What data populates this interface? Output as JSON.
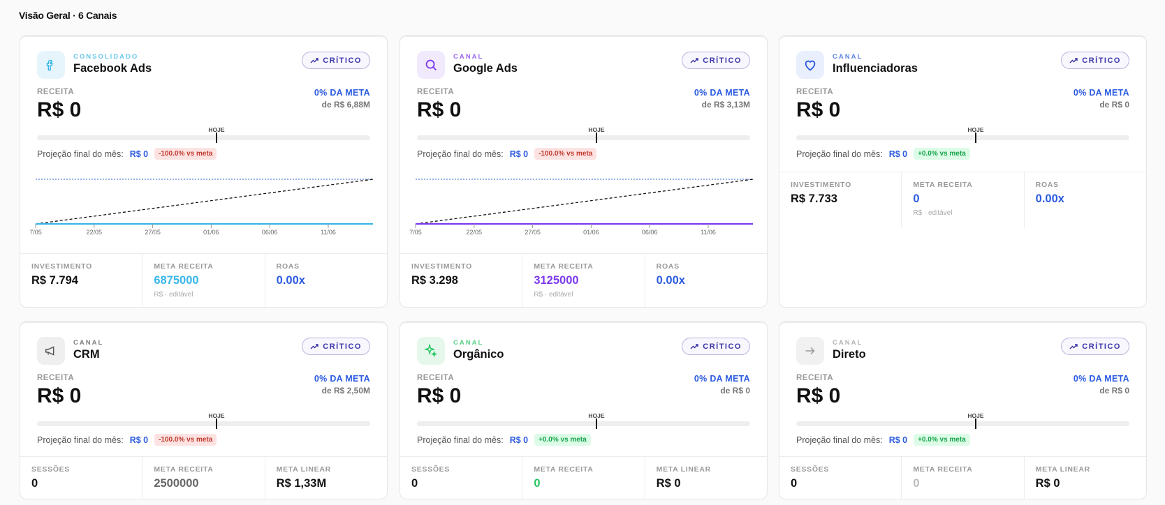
{
  "header": {
    "title": "Visão Geral · 6 Canais"
  },
  "cards": [
    {
      "tag": "CONSOLIDADO",
      "name": "Facebook Ads",
      "accent": "#38b6e8",
      "icon_bg": "#e6f5fc",
      "status": "CRÍTICO",
      "revenue_label": "RECEITA",
      "revenue": "R$ 0",
      "goal_pct": "0% DA META",
      "goal": "de R$ 6,88M",
      "today": "HOJE",
      "projection_label": "Projeção final do mês:",
      "projection": "R$ 0",
      "projection_delta": "-100.0% vs meta",
      "chart_ticks": [
        "7/05",
        "22/05",
        "27/05",
        "01/06",
        "06/06",
        "11/06"
      ],
      "stats": [
        {
          "label": "INVESTIMENTO",
          "value": "R$ 7.794"
        },
        {
          "label": "META RECEITA",
          "value": "6875000",
          "note": "R$ · editável",
          "color": "#38b6e8"
        },
        {
          "label": "ROAS",
          "value": "0.00x",
          "color": "#2b5be0"
        }
      ]
    },
    {
      "tag": "CANAL",
      "name": "Google Ads",
      "accent": "#7c3aed",
      "icon_bg": "#f1eafd",
      "status": "CRÍTICO",
      "revenue_label": "RECEITA",
      "revenue": "R$ 0",
      "goal_pct": "0% DA META",
      "goal": "de R$ 3,13M",
      "today": "HOJE",
      "projection_label": "Projeção final do mês:",
      "projection": "R$ 0",
      "projection_delta": "-100.0% vs meta",
      "chart_ticks": [
        "7/05",
        "22/05",
        "27/05",
        "01/06",
        "06/06",
        "11/06"
      ],
      "stats": [
        {
          "label": "INVESTIMENTO",
          "value": "R$ 3.298"
        },
        {
          "label": "META RECEITA",
          "value": "3125000",
          "note": "R$ · editável",
          "color": "#7c3aed"
        },
        {
          "label": "ROAS",
          "value": "0.00x",
          "color": "#2b5be0"
        }
      ]
    },
    {
      "tag": "CANAL",
      "name": "Influenciadoras",
      "accent": "#2b5be0",
      "icon_bg": "#e9effd",
      "status": "CRÍTICO",
      "revenue_label": "RECEITA",
      "revenue": "R$ 0",
      "goal_pct": "0% DA META",
      "goal": "de R$ 0",
      "today": "HOJE",
      "projection_label": "Projeção final do mês:",
      "projection": "R$ 0",
      "projection_delta": "+0.0% vs meta",
      "stats": [
        {
          "label": "INVESTIMENTO",
          "value": "R$ 7.733"
        },
        {
          "label": "META RECEITA",
          "value": "0",
          "note": "R$ · editável",
          "color": "#2b5be0"
        },
        {
          "label": "ROAS",
          "value": "0.00x",
          "color": "#2b5be0"
        }
      ]
    },
    {
      "tag": "CANAL",
      "name": "CRM",
      "accent": "#555555",
      "icon_bg": "#efefef",
      "status": "CRÍTICO",
      "revenue_label": "RECEITA",
      "revenue": "R$ 0",
      "goal_pct": "0% DA META",
      "goal": "de R$ 2,50M",
      "today": "HOJE",
      "projection_label": "Projeção final do mês:",
      "projection": "R$ 0",
      "projection_delta": "-100.0% vs meta",
      "stats": [
        {
          "label": "SESSÕES",
          "value": "0"
        },
        {
          "label": "META RECEITA",
          "value": "2500000",
          "color": "#666666"
        },
        {
          "label": "META LINEAR",
          "value": "R$ 1,33M"
        }
      ]
    },
    {
      "tag": "CANAL",
      "name": "Orgânico",
      "accent": "#22c55e",
      "icon_bg": "#e6f8ec",
      "status": "CRÍTICO",
      "revenue_label": "RECEITA",
      "revenue": "R$ 0",
      "goal_pct": "0% DA META",
      "goal": "de R$ 0",
      "today": "HOJE",
      "projection_label": "Projeção final do mês:",
      "projection": "R$ 0",
      "projection_delta": "+0.0% vs meta",
      "stats": [
        {
          "label": "SESSÕES",
          "value": "0"
        },
        {
          "label": "META RECEITA",
          "value": "0",
          "color": "#22c55e"
        },
        {
          "label": "META LINEAR",
          "value": "R$ 0"
        }
      ]
    },
    {
      "tag": "CANAL",
      "name": "Direto",
      "accent": "#999999",
      "icon_bg": "#f1f1f1",
      "status": "CRÍTICO",
      "revenue_label": "RECEITA",
      "revenue": "R$ 0",
      "goal_pct": "0% DA META",
      "goal": "de R$ 0",
      "today": "HOJE",
      "projection_label": "Projeção final do mês:",
      "projection": "R$ 0",
      "projection_delta": "+0.0% vs meta",
      "stats": [
        {
          "label": "SESSÕES",
          "value": "0"
        },
        {
          "label": "META RECEITA",
          "value": "0",
          "color": "#bbbbbb"
        },
        {
          "label": "META LINEAR",
          "value": "R$ 0"
        }
      ]
    }
  ]
}
